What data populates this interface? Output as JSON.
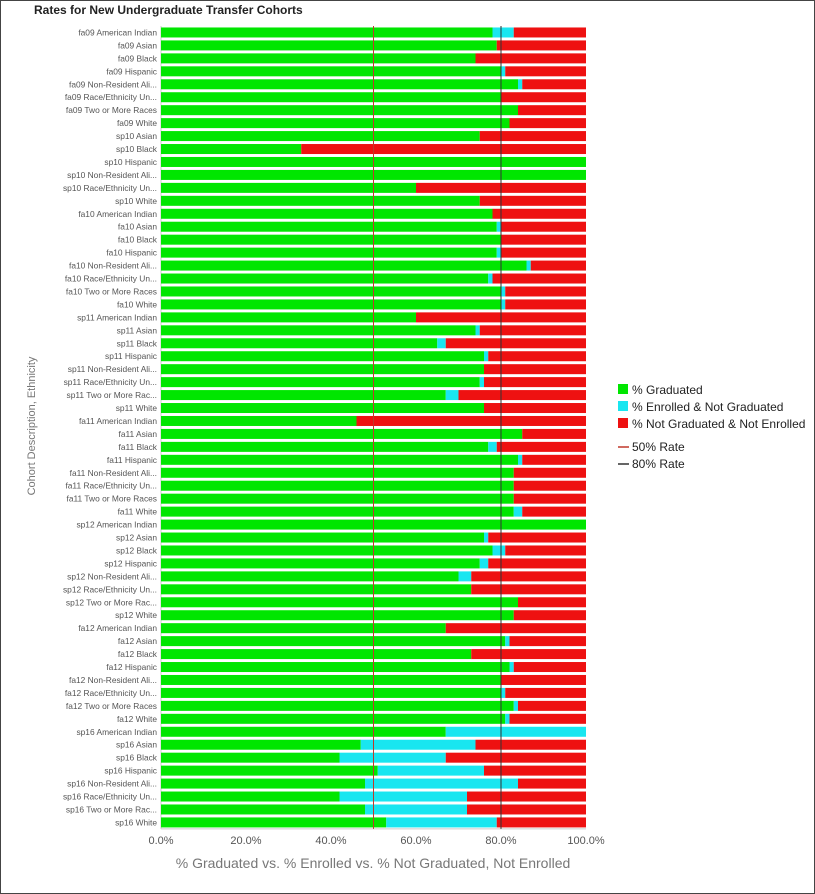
{
  "chart_data": {
    "type": "bar",
    "orientation": "horizontal",
    "stacked": true,
    "title": "Rates for New Undergraduate Transfer Cohorts",
    "xlabel": "% Graduated vs. % Enrolled vs. % Not Graduated, Not Enrolled",
    "ylabel": "Cohort Description, Ethnicity",
    "xlim": [
      0,
      100
    ],
    "xticks": [
      "0.0%",
      "20.0%",
      "40.0%",
      "60.0%",
      "80.0%",
      "100.0%"
    ],
    "legend_position": "right",
    "colors": {
      "graduated": "#00e600",
      "enrolled": "#19e6f0",
      "not_enrolled": "#ee1111",
      "line50": "#c0392b",
      "line80": "#333333"
    },
    "reference_lines": [
      {
        "name": "50% Rate",
        "value": 50
      },
      {
        "name": "80% Rate",
        "value": 80
      }
    ],
    "categories": [
      "fa09 American Indian",
      "fa09 Asian",
      "fa09 Black",
      "fa09 Hispanic",
      "fa09 Non-Resident Ali...",
      "fa09 Race/Ethnicity Un...",
      "fa09 Two or More Races",
      "fa09 White",
      "sp10 Asian",
      "sp10 Black",
      "sp10 Hispanic",
      "sp10 Non-Resident Ali...",
      "sp10 Race/Ethnicity Un...",
      "sp10 White",
      "fa10 American Indian",
      "fa10 Asian",
      "fa10 Black",
      "fa10 Hispanic",
      "fa10 Non-Resident Ali...",
      "fa10 Race/Ethnicity Un...",
      "fa10 Two or More Races",
      "fa10 White",
      "sp11 American Indian",
      "sp11 Asian",
      "sp11 Black",
      "sp11 Hispanic",
      "sp11 Non-Resident Ali...",
      "sp11 Race/Ethnicity Un...",
      "sp11 Two or More Rac...",
      "sp11 White",
      "fa11 American Indian",
      "fa11 Asian",
      "fa11 Black",
      "fa11 Hispanic",
      "fa11 Non-Resident Ali...",
      "fa11 Race/Ethnicity Un...",
      "fa11 Two or More Races",
      "fa11 White",
      "sp12 American Indian",
      "sp12 Asian",
      "sp12 Black",
      "sp12 Hispanic",
      "sp12 Non-Resident Ali...",
      "sp12 Race/Ethnicity Un...",
      "sp12 Two or More Rac...",
      "sp12 White",
      "fa12 American Indian",
      "fa12 Asian",
      "fa12 Black",
      "fa12 Hispanic",
      "fa12 Non-Resident Ali...",
      "fa12 Race/Ethnicity Un...",
      "fa12 Two or More Races",
      "fa12 White",
      "sp16 American Indian",
      "sp16 Asian",
      "sp16 Black",
      "sp16 Hispanic",
      "sp16 Non-Resident Ali...",
      "sp16 Race/Ethnicity Un...",
      "sp16 Two or More Rac...",
      "sp16 White"
    ],
    "series": [
      {
        "name": "% Graduated",
        "values": [
          78,
          79,
          74,
          80,
          84,
          80,
          84,
          82,
          75,
          33,
          100,
          100,
          60,
          75,
          78,
          79,
          80,
          79,
          86,
          77,
          80,
          80,
          60,
          74,
          65,
          76,
          76,
          75,
          67,
          76,
          46,
          85,
          77,
          84,
          83,
          83,
          83,
          83,
          100,
          76,
          78,
          75,
          70,
          73,
          84,
          83,
          67,
          81,
          73,
          82,
          80,
          80,
          83,
          81,
          67,
          47,
          42,
          51,
          48,
          42,
          48,
          53
        ]
      },
      {
        "name": "% Enrolled & Not Graduated",
        "values": [
          5,
          0,
          0,
          1,
          1,
          0,
          0,
          0,
          0,
          0,
          0,
          0,
          0,
          0,
          0,
          1,
          0,
          1,
          1,
          1,
          1,
          1,
          0,
          1,
          2,
          1,
          0,
          1,
          3,
          0,
          0,
          0,
          2,
          1,
          0,
          0,
          0,
          2,
          0,
          1,
          3,
          2,
          3,
          0,
          0,
          0,
          0,
          1,
          0,
          1,
          0,
          1,
          1,
          1,
          33,
          27,
          25,
          25,
          36,
          30,
          24,
          26
        ]
      },
      {
        "name": "% Not Graduated & Not Enrolled",
        "values": [
          17,
          21,
          26,
          19,
          15,
          20,
          16,
          18,
          25,
          67,
          0,
          0,
          40,
          25,
          22,
          20,
          20,
          20,
          13,
          22,
          19,
          19,
          40,
          25,
          33,
          23,
          24,
          24,
          30,
          24,
          54,
          15,
          21,
          15,
          17,
          17,
          17,
          15,
          0,
          23,
          19,
          23,
          27,
          27,
          16,
          17,
          33,
          18,
          27,
          17,
          20,
          19,
          16,
          18,
          0,
          26,
          33,
          24,
          16,
          28,
          28,
          21
        ]
      }
    ]
  }
}
